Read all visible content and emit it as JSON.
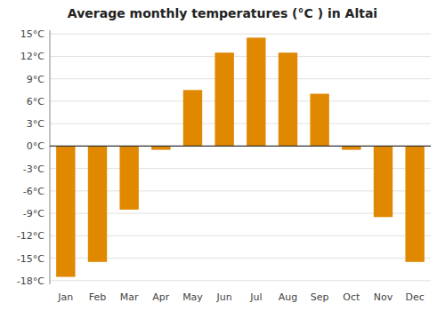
{
  "chart_data": {
    "type": "bar",
    "title": "Average monthly temperatures (°C ) in Altai",
    "categories": [
      "Jan",
      "Feb",
      "Mar",
      "Apr",
      "May",
      "Jun",
      "Jul",
      "Aug",
      "Sep",
      "Oct",
      "Nov",
      "Dec"
    ],
    "values": [
      -17.5,
      -15.5,
      -8.5,
      -0.5,
      7.5,
      12.5,
      14.5,
      12.5,
      7.0,
      -0.5,
      -9.5,
      -15.5
    ],
    "color": "#E08800",
    "ylim": [
      -18.5,
      15.5
    ],
    "yticks": [
      {
        "value": -18,
        "label": "-18°C"
      },
      {
        "value": -15,
        "label": "-15°C"
      },
      {
        "value": -12,
        "label": "-12°C"
      },
      {
        "value": -9,
        "label": "-9°C"
      },
      {
        "value": -6,
        "label": "-6°C"
      },
      {
        "value": -3,
        "label": "-3°C"
      },
      {
        "value": 0,
        "label": "0°C"
      },
      {
        "value": 3,
        "label": "3°C"
      },
      {
        "value": 6,
        "label": "6°C"
      },
      {
        "value": 9,
        "label": "9°C"
      },
      {
        "value": 12,
        "label": "12°C"
      },
      {
        "value": 15,
        "label": "15°C"
      }
    ],
    "grid": true
  }
}
